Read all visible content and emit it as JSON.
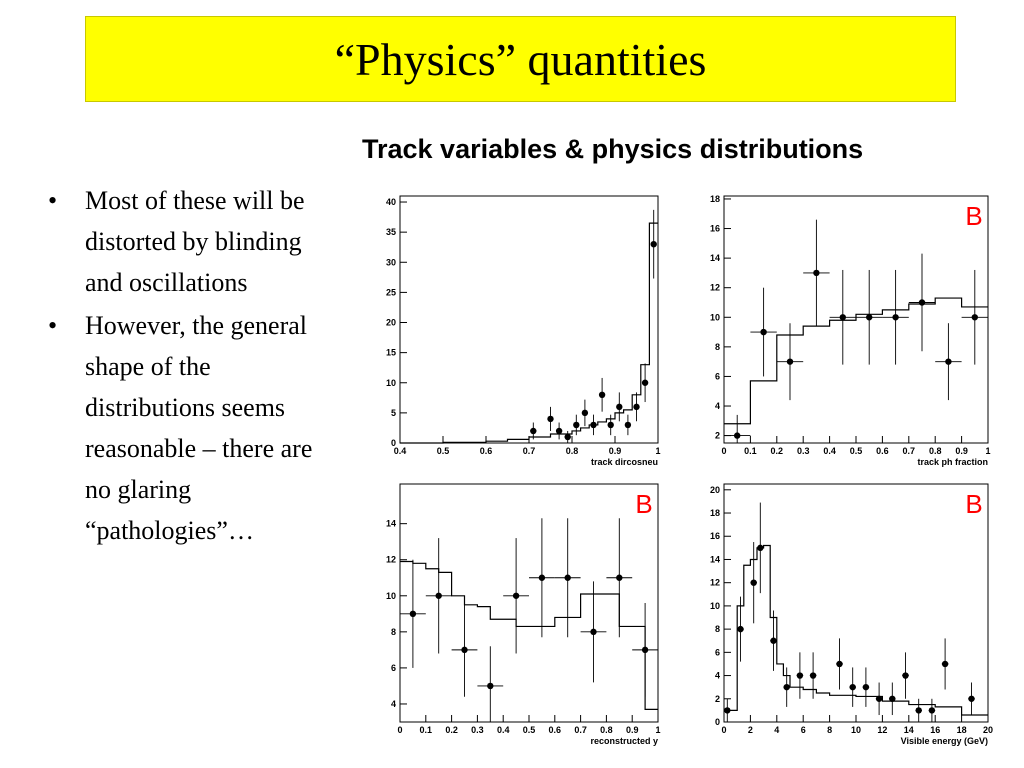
{
  "slide": {
    "title": "“Physics” quantities",
    "subtitle": "Track variables & physics distributions",
    "bullets": [
      "Most of these will be distorted by blinding and oscillations",
      "However, the general shape of the distributions seems reasonable – there are no glaring “pathologies”…"
    ],
    "bullet_symbol": "•"
  },
  "colors": {
    "title_bg": "#ffff00",
    "blind_label": "#ff0000"
  },
  "chart_data": [
    {
      "type": "scatter",
      "xlabel": "track dircosneu",
      "xlim": [
        0.4,
        1.0
      ],
      "ylim": [
        0,
        41
      ],
      "xticks": [
        0.4,
        0.5,
        0.6,
        0.7,
        0.8,
        0.9,
        1
      ],
      "yticks": [
        0,
        5,
        10,
        15,
        20,
        25,
        30,
        35,
        40
      ],
      "points": [
        {
          "x": 0.71,
          "y": 2,
          "err": 1.4
        },
        {
          "x": 0.75,
          "y": 4,
          "err": 2
        },
        {
          "x": 0.77,
          "y": 2,
          "err": 1.4
        },
        {
          "x": 0.79,
          "y": 1,
          "err": 1
        },
        {
          "x": 0.81,
          "y": 3,
          "err": 1.7
        },
        {
          "x": 0.83,
          "y": 5,
          "err": 2.2
        },
        {
          "x": 0.85,
          "y": 3,
          "err": 1.7
        },
        {
          "x": 0.87,
          "y": 8,
          "err": 2.8
        },
        {
          "x": 0.89,
          "y": 3,
          "err": 1.7
        },
        {
          "x": 0.91,
          "y": 6,
          "err": 2.4
        },
        {
          "x": 0.93,
          "y": 3,
          "err": 1.7
        },
        {
          "x": 0.95,
          "y": 6,
          "err": 2.4
        },
        {
          "x": 0.97,
          "y": 10,
          "err": 3.2
        },
        {
          "x": 0.99,
          "y": 33,
          "err": 5.7
        }
      ],
      "hist_edges": [
        0.4,
        0.5,
        0.6,
        0.65,
        0.7,
        0.75,
        0.8,
        0.82,
        0.84,
        0.86,
        0.88,
        0.9,
        0.92,
        0.94,
        0.96,
        0.98,
        1.0
      ],
      "hist_values": [
        0,
        0.1,
        0.3,
        0.6,
        1,
        1.5,
        2,
        2.5,
        3,
        3.5,
        4,
        5,
        5.5,
        8,
        13,
        36.5
      ],
      "blind_label": ""
    },
    {
      "type": "scatter",
      "xlabel": "track ph fraction",
      "xlim": [
        0,
        1
      ],
      "ylim": [
        1.5,
        18.2
      ],
      "xticks": [
        0,
        0.1,
        0.2,
        0.3,
        0.4,
        0.5,
        0.6,
        0.7,
        0.8,
        0.9,
        1
      ],
      "yticks": [
        2,
        4,
        6,
        8,
        10,
        12,
        14,
        16,
        18
      ],
      "points": [
        {
          "x": 0.05,
          "y": 2,
          "err": 1.4
        },
        {
          "x": 0.15,
          "y": 9,
          "err": 3
        },
        {
          "x": 0.25,
          "y": 7,
          "err": 2.6
        },
        {
          "x": 0.35,
          "y": 13,
          "err": 3.6
        },
        {
          "x": 0.45,
          "y": 10,
          "err": 3.2
        },
        {
          "x": 0.55,
          "y": 10,
          "err": 3.2
        },
        {
          "x": 0.65,
          "y": 10,
          "err": 3.2
        },
        {
          "x": 0.75,
          "y": 11,
          "err": 3.3
        },
        {
          "x": 0.85,
          "y": 7,
          "err": 2.6
        },
        {
          "x": 0.95,
          "y": 10,
          "err": 3.2
        }
      ],
      "hist_edges": [
        0,
        0.1,
        0.2,
        0.3,
        0.4,
        0.5,
        0.6,
        0.7,
        0.8,
        0.9,
        1.0
      ],
      "hist_values": [
        2.8,
        5.7,
        8.8,
        9.4,
        9.8,
        10.2,
        10.5,
        10.9,
        11.3,
        10.7
      ],
      "blind_label": "B"
    },
    {
      "type": "scatter",
      "xlabel": "reconstructed y",
      "xlim": [
        0,
        1
      ],
      "ylim": [
        3,
        16.2
      ],
      "xticks": [
        0,
        0.1,
        0.2,
        0.3,
        0.4,
        0.5,
        0.6,
        0.7,
        0.8,
        0.9,
        1
      ],
      "yticks": [
        4,
        6,
        8,
        10,
        12,
        14
      ],
      "points": [
        {
          "x": 0.05,
          "y": 9,
          "err": 3
        },
        {
          "x": 0.15,
          "y": 10,
          "err": 3.2
        },
        {
          "x": 0.25,
          "y": 7,
          "err": 2.6
        },
        {
          "x": 0.35,
          "y": 5,
          "err": 2.2
        },
        {
          "x": 0.45,
          "y": 10,
          "err": 3.2
        },
        {
          "x": 0.55,
          "y": 11,
          "err": 3.3
        },
        {
          "x": 0.65,
          "y": 11,
          "err": 3.3
        },
        {
          "x": 0.75,
          "y": 8,
          "err": 2.8
        },
        {
          "x": 0.85,
          "y": 11,
          "err": 3.3
        },
        {
          "x": 0.95,
          "y": 7,
          "err": 2.6
        }
      ],
      "hist_edges": [
        0,
        0.05,
        0.1,
        0.15,
        0.2,
        0.25,
        0.3,
        0.35,
        0.4,
        0.45,
        0.5,
        0.55,
        0.6,
        0.65,
        0.7,
        0.75,
        0.8,
        0.85,
        0.9,
        0.95,
        1.0
      ],
      "hist_values": [
        11.9,
        11.8,
        11.5,
        11.3,
        10,
        9.5,
        9.4,
        8.7,
        8.7,
        8.3,
        8.3,
        8.3,
        8.8,
        8.8,
        10.1,
        10.1,
        10.1,
        8.3,
        8.3,
        3.7
      ],
      "blind_label": "B"
    },
    {
      "type": "scatter",
      "xlabel": "Visible energy (GeV)",
      "xlim": [
        0,
        20
      ],
      "ylim": [
        0,
        20.5
      ],
      "xticks": [
        0,
        2,
        4,
        6,
        8,
        10,
        12,
        14,
        16,
        18,
        20
      ],
      "yticks": [
        0,
        2,
        4,
        6,
        8,
        10,
        12,
        14,
        16,
        18,
        20
      ],
      "points": [
        {
          "x": 0.25,
          "y": 1,
          "err": 1
        },
        {
          "x": 1.25,
          "y": 8,
          "err": 2.8
        },
        {
          "x": 2.25,
          "y": 12,
          "err": 3.5
        },
        {
          "x": 2.75,
          "y": 15,
          "err": 3.9
        },
        {
          "x": 3.75,
          "y": 7,
          "err": 2.6
        },
        {
          "x": 4.75,
          "y": 3,
          "err": 1.7
        },
        {
          "x": 5.75,
          "y": 4,
          "err": 2
        },
        {
          "x": 6.75,
          "y": 4,
          "err": 2
        },
        {
          "x": 8.75,
          "y": 5,
          "err": 2.2
        },
        {
          "x": 9.75,
          "y": 3,
          "err": 1.7
        },
        {
          "x": 10.75,
          "y": 3,
          "err": 1.7
        },
        {
          "x": 11.75,
          "y": 2,
          "err": 1.4
        },
        {
          "x": 12.75,
          "y": 2,
          "err": 1.4
        },
        {
          "x": 13.75,
          "y": 4,
          "err": 2
        },
        {
          "x": 14.75,
          "y": 1,
          "err": 1
        },
        {
          "x": 15.75,
          "y": 1,
          "err": 1
        },
        {
          "x": 16.75,
          "y": 5,
          "err": 2.2
        },
        {
          "x": 18.75,
          "y": 2,
          "err": 1.4
        }
      ],
      "hist_edges": [
        0,
        0.5,
        1,
        1.5,
        2,
        2.5,
        3,
        3.5,
        4,
        4.5,
        5,
        6,
        7,
        8,
        10,
        12,
        14,
        16,
        18,
        20
      ],
      "hist_values": [
        1,
        1,
        10,
        13.5,
        14,
        15,
        15.2,
        9,
        5,
        4,
        3,
        2.8,
        2.5,
        2.3,
        2.2,
        1.8,
        1.5,
        1.3,
        0.6
      ],
      "blind_label": "B"
    }
  ]
}
